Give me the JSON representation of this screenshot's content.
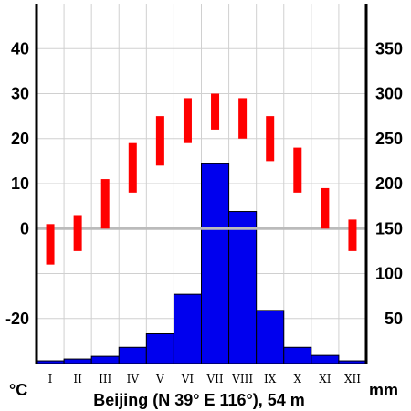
{
  "chart_data": {
    "type": "climate-diagram",
    "title": "Beijing (N 39° E 116°), 54 m",
    "categories": [
      "I",
      "II",
      "III",
      "IV",
      "V",
      "VI",
      "VII",
      "VIII",
      "IX",
      "X",
      "XI",
      "XII"
    ],
    "left_axis": {
      "unit": "°C",
      "ylim": [
        -30,
        50
      ],
      "ticks": [
        -20,
        0,
        10,
        20,
        30,
        40
      ],
      "tick_labels": [
        "-20",
        "0",
        "10",
        "20",
        "30",
        "40"
      ]
    },
    "right_axis": {
      "unit": "mm",
      "ylim": [
        0,
        400
      ],
      "ticks": [
        50,
        100,
        150,
        200,
        250,
        300,
        350
      ],
      "tick_labels": [
        "50",
        "100",
        "150",
        "200",
        "250",
        "300",
        "350"
      ]
    },
    "series": [
      {
        "type": "bar",
        "axis": "right",
        "color": "#0000ee",
        "values": [
          3,
          5,
          8,
          18,
          33,
          77,
          222,
          169,
          59,
          18,
          9,
          3
        ]
      },
      {
        "type": "range",
        "axis": "left",
        "color": "#ff0000",
        "low": [
          -8,
          -5,
          0,
          8,
          14,
          19,
          22,
          20,
          15,
          8,
          0,
          -5
        ],
        "high": [
          1,
          3,
          11,
          19,
          25,
          29,
          30,
          29,
          25,
          18,
          9,
          2
        ]
      }
    ],
    "zero_line_color": "#bbbbbb",
    "grid": true
  }
}
